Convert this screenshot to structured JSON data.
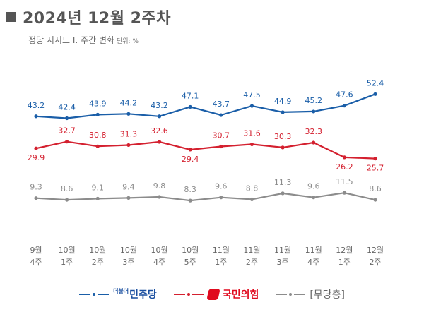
{
  "header": {
    "title": "2024년 12월 2주차",
    "subtitle": "정당 지지도 Ⅰ. 주간 변화",
    "unit": "단위: %"
  },
  "legend": {
    "dem_small": "더불어",
    "dem": "민주당",
    "ppp": "국민의힘",
    "ind": "[무당층]"
  },
  "colors": {
    "dem": "#1a5ea8",
    "ppp": "#d4202f",
    "ind": "#8c8c8c"
  },
  "chart_data": {
    "type": "line",
    "categories": [
      [
        "9월",
        "4주"
      ],
      [
        "10월",
        "1주"
      ],
      [
        "10월",
        "2주"
      ],
      [
        "10월",
        "3주"
      ],
      [
        "10월",
        "4주"
      ],
      [
        "10월",
        "5주"
      ],
      [
        "11월",
        "1주"
      ],
      [
        "11월",
        "2주"
      ],
      [
        "11월",
        "3주"
      ],
      [
        "11월",
        "4주"
      ],
      [
        "12월",
        "1주"
      ],
      [
        "12월",
        "2주"
      ]
    ],
    "series": [
      {
        "name": "민주당",
        "color": "#1a5ea8",
        "values": [
          43.2,
          42.4,
          43.9,
          44.2,
          43.2,
          47.1,
          43.7,
          47.5,
          44.9,
          45.2,
          47.6,
          52.4
        ]
      },
      {
        "name": "국민의힘",
        "color": "#d4202f",
        "values": [
          29.9,
          32.7,
          30.8,
          31.3,
          32.6,
          29.4,
          30.7,
          31.6,
          30.3,
          32.3,
          26.2,
          25.7
        ]
      },
      {
        "name": "무당층",
        "color": "#8c8c8c",
        "values": [
          9.3,
          8.6,
          9.1,
          9.4,
          9.8,
          8.3,
          9.6,
          8.8,
          11.3,
          9.6,
          11.5,
          8.6
        ]
      }
    ],
    "grid": false
  }
}
